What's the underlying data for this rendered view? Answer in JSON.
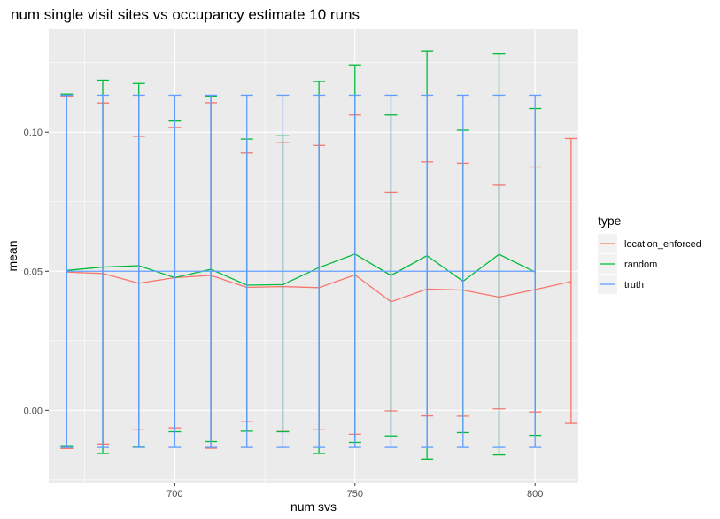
{
  "chart_data": {
    "type": "line",
    "title": "num single visit sites vs occupancy estimate 10 runs",
    "xlabel": "num svs",
    "ylabel": "mean",
    "xlim": [
      665,
      812
    ],
    "ylim": [
      -0.026,
      0.137
    ],
    "x_ticks": [
      700,
      750,
      800
    ],
    "x_tick_labels": [
      "700",
      "750",
      "800"
    ],
    "y_ticks": [
      0.0,
      0.05,
      0.1
    ],
    "y_tick_labels": [
      "0.00",
      "0.05",
      "0.10"
    ],
    "grid": true,
    "legend": {
      "title": "type",
      "position": "right"
    },
    "series": [
      {
        "name": "location_enforced",
        "color": "#F8766D",
        "x": [
          670,
          680,
          690,
          700,
          710,
          720,
          730,
          740,
          750,
          760,
          770,
          780,
          790,
          800,
          810
        ],
        "mean": [
          0.0497,
          0.0492,
          0.0457,
          0.0477,
          0.0485,
          0.0442,
          0.0445,
          0.0441,
          0.0487,
          0.039,
          0.0436,
          0.0432,
          0.0407,
          0.0434,
          0.0463
        ],
        "upper": [
          0.113,
          0.1105,
          0.0985,
          0.1017,
          0.1106,
          0.0925,
          0.0962,
          0.0952,
          0.1062,
          0.0783,
          0.0893,
          0.0888,
          0.081,
          0.0875,
          0.0977
        ],
        "lower": [
          -0.0137,
          -0.0121,
          -0.007,
          -0.0063,
          -0.0136,
          -0.0041,
          -0.0071,
          -0.007,
          -0.0086,
          -0.0002,
          -0.002,
          -0.0021,
          0.0005,
          -0.0006,
          -0.0047
        ]
      },
      {
        "name": "random",
        "color": "#00BA38",
        "x": [
          670,
          680,
          690,
          700,
          710,
          720,
          730,
          740,
          750,
          760,
          770,
          780,
          790,
          800
        ],
        "mean": [
          0.0503,
          0.0515,
          0.052,
          0.0477,
          0.0507,
          0.045,
          0.0452,
          0.0513,
          0.0562,
          0.0485,
          0.0556,
          0.0464,
          0.0561,
          0.0497
        ],
        "upper": [
          0.1137,
          0.1187,
          0.1175,
          0.104,
          0.113,
          0.0975,
          0.0987,
          0.1182,
          0.1242,
          0.1062,
          0.129,
          0.1007,
          0.1282,
          0.1085
        ],
        "lower": [
          -0.013,
          -0.0155,
          -0.0132,
          -0.0077,
          -0.0112,
          -0.0075,
          -0.0077,
          -0.0155,
          -0.0115,
          -0.0092,
          -0.0175,
          -0.008,
          -0.016,
          -0.009
        ]
      },
      {
        "name": "truth",
        "color": "#619CFF",
        "x": [
          670,
          680,
          690,
          700,
          710,
          720,
          730,
          740,
          750,
          760,
          770,
          780,
          790,
          800
        ],
        "mean": [
          0.05,
          0.05,
          0.05,
          0.05,
          0.05,
          0.05,
          0.05,
          0.05,
          0.05,
          0.05,
          0.05,
          0.05,
          0.05,
          0.05
        ],
        "upper": [
          0.1133,
          0.1133,
          0.1133,
          0.1133,
          0.1133,
          0.1133,
          0.1133,
          0.1133,
          0.1133,
          0.1133,
          0.1133,
          0.1133,
          0.1133,
          0.1133
        ],
        "lower": [
          -0.0133,
          -0.0133,
          -0.0133,
          -0.0133,
          -0.0133,
          -0.0133,
          -0.0133,
          -0.0133,
          -0.0133,
          -0.0133,
          -0.0133,
          -0.0133,
          -0.0133,
          -0.0133
        ]
      }
    ]
  }
}
